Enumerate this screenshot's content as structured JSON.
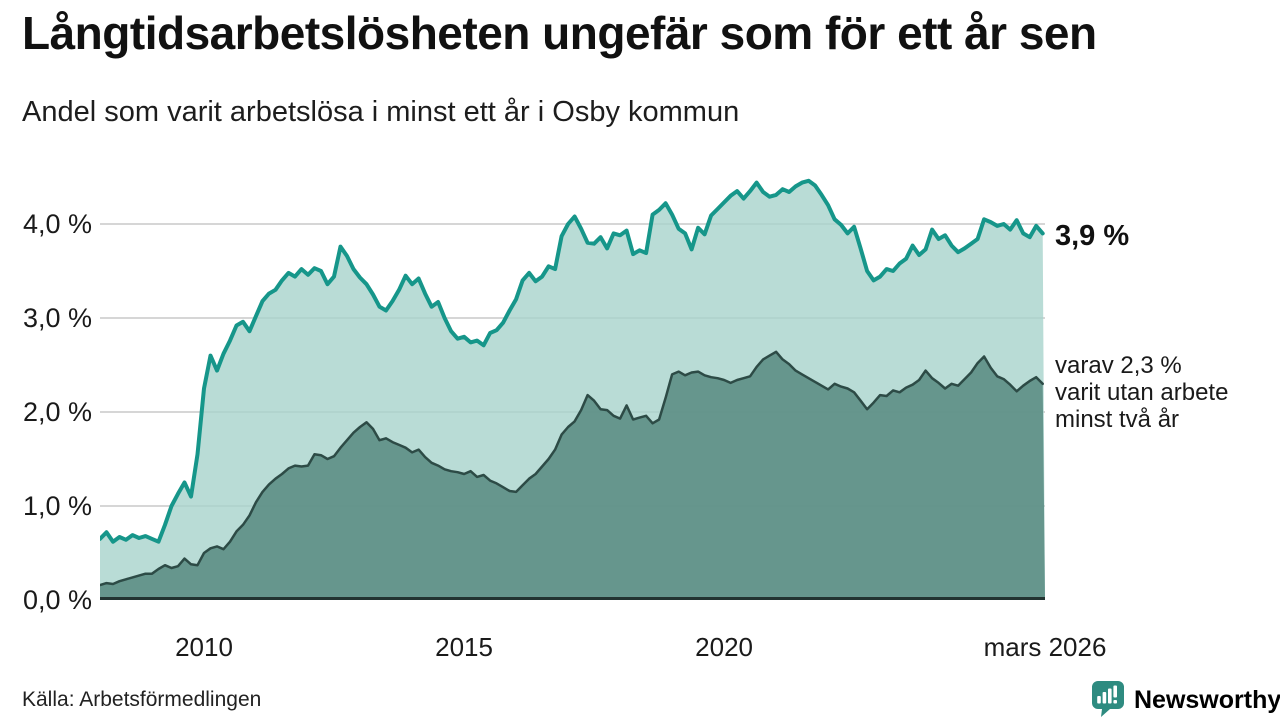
{
  "title": "Långtidsarbetslösheten ungefär som för ett år sen",
  "subtitle": "Andel som varit arbetslösa i minst ett år i Osby kommun",
  "source": "Källa: Arbetsförmedlingen",
  "branding": {
    "logo_text": "Newsworthy",
    "logo_icon": "bar-chart-bubble-icon",
    "brand_color": "#2e8b80"
  },
  "annotations": {
    "series1_end_label": "3,9 %",
    "series2_end_label_lines": [
      "varav 2,3 %",
      "varit utan arbete",
      "minst två år"
    ]
  },
  "colors": {
    "series1_line": "#16968a",
    "series1_fill": "rgba(167,211,204,0.8)",
    "series2_line": "#2d4b46",
    "series2_fill": "rgba(94,143,135,0.92)",
    "gridline": "#d6d6d6",
    "axis_line": "#223331",
    "text": "#111111"
  },
  "chart_data": {
    "type": "area",
    "title": "Långtidsarbetslösheten ungefär som för ett år sen",
    "subtitle": "Andel som varit arbetslösa i minst ett år i Osby kommun",
    "unit": "%",
    "x_start": 2008.0,
    "x_step": 0.125,
    "x_end": 2026.17,
    "grid": true,
    "ylim": [
      0,
      4.6
    ],
    "y_ticks": [
      0,
      1,
      2,
      3,
      4
    ],
    "y_tick_labels": [
      "0,0 %",
      "1,0 %",
      "2,0 %",
      "3,0 %",
      "4,0 %"
    ],
    "x_tick_positions": [
      2010,
      2015,
      2020,
      2026.17
    ],
    "x_tick_labels": [
      "2010",
      "2015",
      "2020",
      "mars 2026"
    ],
    "series": [
      {
        "name": "Andel arbetslösa minst ett år",
        "end_value": 3.9,
        "line_color": "#16968a",
        "line_width": 4,
        "fill_color": "rgba(167,211,204,0.8)",
        "values": [
          0.65,
          0.72,
          0.62,
          0.67,
          0.64,
          0.69,
          0.66,
          0.68,
          0.65,
          0.62,
          0.8,
          1.0,
          1.13,
          1.25,
          1.1,
          1.55,
          2.25,
          2.6,
          2.44,
          2.62,
          2.76,
          2.92,
          2.96,
          2.86,
          3.02,
          3.18,
          3.26,
          3.3,
          3.4,
          3.48,
          3.44,
          3.52,
          3.46,
          3.53,
          3.5,
          3.36,
          3.44,
          3.76,
          3.66,
          3.52,
          3.43,
          3.36,
          3.25,
          3.12,
          3.08,
          3.18,
          3.3,
          3.45,
          3.36,
          3.42,
          3.26,
          3.12,
          3.17,
          3.0,
          2.86,
          2.78,
          2.8,
          2.74,
          2.76,
          2.71,
          2.84,
          2.87,
          2.95,
          3.08,
          3.2,
          3.4,
          3.48,
          3.39,
          3.44,
          3.55,
          3.52,
          3.87,
          4.0,
          4.08,
          3.95,
          3.8,
          3.79,
          3.86,
          3.74,
          3.9,
          3.88,
          3.93,
          3.68,
          3.72,
          3.69,
          4.1,
          4.15,
          4.22,
          4.1,
          3.95,
          3.9,
          3.73,
          3.96,
          3.89,
          4.09,
          4.16,
          4.23,
          4.3,
          4.35,
          4.27,
          4.35,
          4.44,
          4.34,
          4.29,
          4.31,
          4.37,
          4.34,
          4.4,
          4.44,
          4.46,
          4.41,
          4.31,
          4.2,
          4.05,
          3.99,
          3.9,
          3.97,
          3.74,
          3.5,
          3.4,
          3.44,
          3.52,
          3.5,
          3.58,
          3.63,
          3.77,
          3.67,
          3.73,
          3.94,
          3.84,
          3.88,
          3.77,
          3.7,
          3.74,
          3.79,
          3.84,
          4.05,
          4.02,
          3.98,
          4.0,
          3.94,
          4.04,
          3.9,
          3.86,
          3.98,
          3.9
        ]
      },
      {
        "name": "varav utan arbete minst två år",
        "end_value": 2.3,
        "line_color": "#2d4b46",
        "line_width": 2.5,
        "fill_color": "rgba(94,143,135,0.92)",
        "values": [
          0.16,
          0.18,
          0.17,
          0.2,
          0.22,
          0.24,
          0.26,
          0.28,
          0.28,
          0.33,
          0.37,
          0.34,
          0.36,
          0.44,
          0.38,
          0.37,
          0.5,
          0.55,
          0.57,
          0.54,
          0.62,
          0.73,
          0.8,
          0.9,
          1.04,
          1.15,
          1.23,
          1.29,
          1.34,
          1.4,
          1.43,
          1.42,
          1.43,
          1.55,
          1.54,
          1.5,
          1.53,
          1.62,
          1.7,
          1.78,
          1.84,
          1.89,
          1.82,
          1.7,
          1.72,
          1.68,
          1.65,
          1.62,
          1.57,
          1.6,
          1.52,
          1.46,
          1.43,
          1.39,
          1.37,
          1.36,
          1.34,
          1.37,
          1.31,
          1.33,
          1.27,
          1.24,
          1.2,
          1.16,
          1.15,
          1.22,
          1.29,
          1.34,
          1.42,
          1.5,
          1.6,
          1.76,
          1.84,
          1.9,
          2.02,
          2.18,
          2.12,
          2.03,
          2.02,
          1.96,
          1.93,
          2.07,
          1.92,
          1.94,
          1.96,
          1.88,
          1.92,
          2.15,
          2.4,
          2.43,
          2.39,
          2.42,
          2.43,
          2.39,
          2.37,
          2.36,
          2.34,
          2.31,
          2.34,
          2.36,
          2.38,
          2.48,
          2.56,
          2.6,
          2.64,
          2.56,
          2.51,
          2.44,
          2.4,
          2.36,
          2.32,
          2.28,
          2.24,
          2.3,
          2.27,
          2.25,
          2.21,
          2.12,
          2.03,
          2.1,
          2.18,
          2.17,
          2.23,
          2.21,
          2.26,
          2.29,
          2.34,
          2.44,
          2.36,
          2.31,
          2.25,
          2.3,
          2.28,
          2.35,
          2.42,
          2.52,
          2.59,
          2.47,
          2.38,
          2.35,
          2.29,
          2.22,
          2.28,
          2.33,
          2.37,
          2.3
        ]
      }
    ]
  }
}
